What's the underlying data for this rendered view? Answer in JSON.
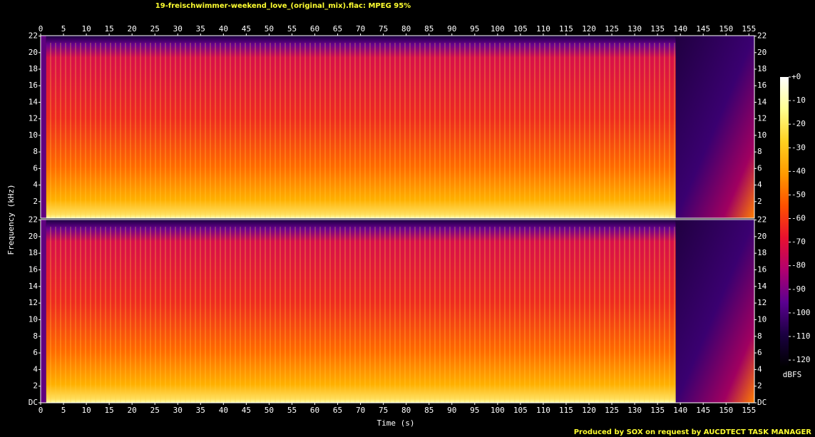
{
  "chart_data": {
    "type": "spectrogram",
    "title": "19-freischwimmer-weekend_love_(original_mix).flac: MPEG 95%",
    "xlabel": "Time (s)",
    "ylabel": "Frequency (kHz)",
    "xlim": [
      0,
      156.2
    ],
    "xticks": [
      0,
      5,
      10,
      15,
      20,
      25,
      30,
      35,
      40,
      45,
      50,
      55,
      60,
      65,
      70,
      75,
      80,
      85,
      90,
      95,
      100,
      105,
      110,
      115,
      120,
      125,
      130,
      135,
      140,
      145,
      150,
      155
    ],
    "panels": [
      {
        "ylim": [
          0,
          22.05
        ],
        "yticks": [
          2,
          4,
          6,
          8,
          10,
          12,
          14,
          16,
          18,
          20,
          22
        ]
      },
      {
        "ylim": [
          0,
          22.05
        ],
        "yticks": [
          {
            "value": 0,
            "label": "DC"
          },
          2,
          4,
          6,
          8,
          10,
          12,
          14,
          16,
          18,
          20,
          22
        ]
      }
    ],
    "colorbar": {
      "label": "dBFS",
      "clim": [
        -123,
        0
      ],
      "ticks": [
        {
          "value": 0,
          "label": "+0"
        },
        -10,
        -20,
        -30,
        -40,
        -50,
        -60,
        -70,
        -80,
        -90,
        -100,
        -110,
        -120
      ],
      "colors": [
        "#000000",
        "#1a0040",
        "#5a0090",
        "#b00070",
        "#e81030",
        "#ff5000",
        "#ff9a00",
        "#ffd020",
        "#ffff90",
        "#ffffff"
      ]
    },
    "footer": "Produced by SOX on request by AUCDTECT TASK MANAGER"
  }
}
